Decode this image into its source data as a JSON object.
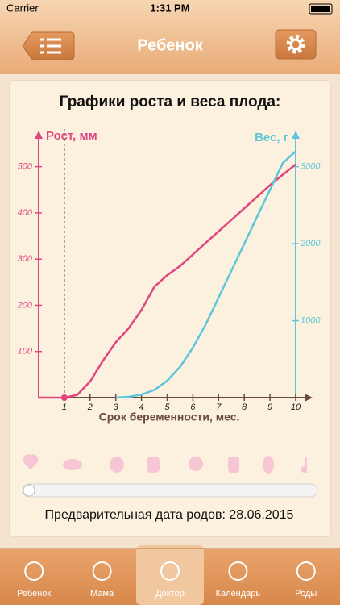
{
  "status_bar": {
    "carrier": "Carrier",
    "time": "1:31 PM"
  },
  "nav": {
    "title": "Ребенок"
  },
  "chart_data": {
    "type": "line",
    "title": "Графики роста и веса плода:",
    "ylabel": "Рост, мм",
    "y2label": "Вес, г",
    "xlabel": "Срок беременности, мес.",
    "x": [
      0,
      1,
      1.5,
      2,
      2.5,
      3,
      3.5,
      4,
      4.5,
      5,
      5.5,
      6,
      6.5,
      7,
      7.5,
      8,
      8.5,
      9,
      9.5,
      10
    ],
    "series": [
      {
        "name": "Рост, мм",
        "color": "#e0457f",
        "values": [
          0,
          0,
          6,
          35,
          80,
          120,
          150,
          190,
          240,
          265,
          285,
          310,
          335,
          360,
          385,
          410,
          435,
          460,
          483,
          505
        ]
      },
      {
        "name": "Вес, г",
        "color": "#5ec6da",
        "axis": "y2",
        "values": [
          null,
          null,
          null,
          null,
          null,
          0,
          10,
          40,
          100,
          220,
          400,
          650,
          950,
          1300,
          1650,
          2000,
          2350,
          2700,
          3050,
          3200
        ]
      }
    ],
    "xlim": [
      0,
      10
    ],
    "xticks": [
      1,
      2,
      3,
      4,
      5,
      6,
      7,
      8,
      9,
      10
    ],
    "ylim": [
      0,
      550
    ],
    "yticks": [
      100,
      200,
      300,
      400,
      500
    ],
    "y2lim": [
      0,
      3300
    ],
    "y2ticks": [
      1000,
      2000,
      3000
    ],
    "marker": {
      "x": 1
    }
  },
  "footer": {
    "due_date": "Предварительная дата родов: 28.06.2015"
  },
  "tabs": [
    "Ребенок",
    "Мама",
    "Доктор",
    "Календарь",
    "Роды"
  ]
}
